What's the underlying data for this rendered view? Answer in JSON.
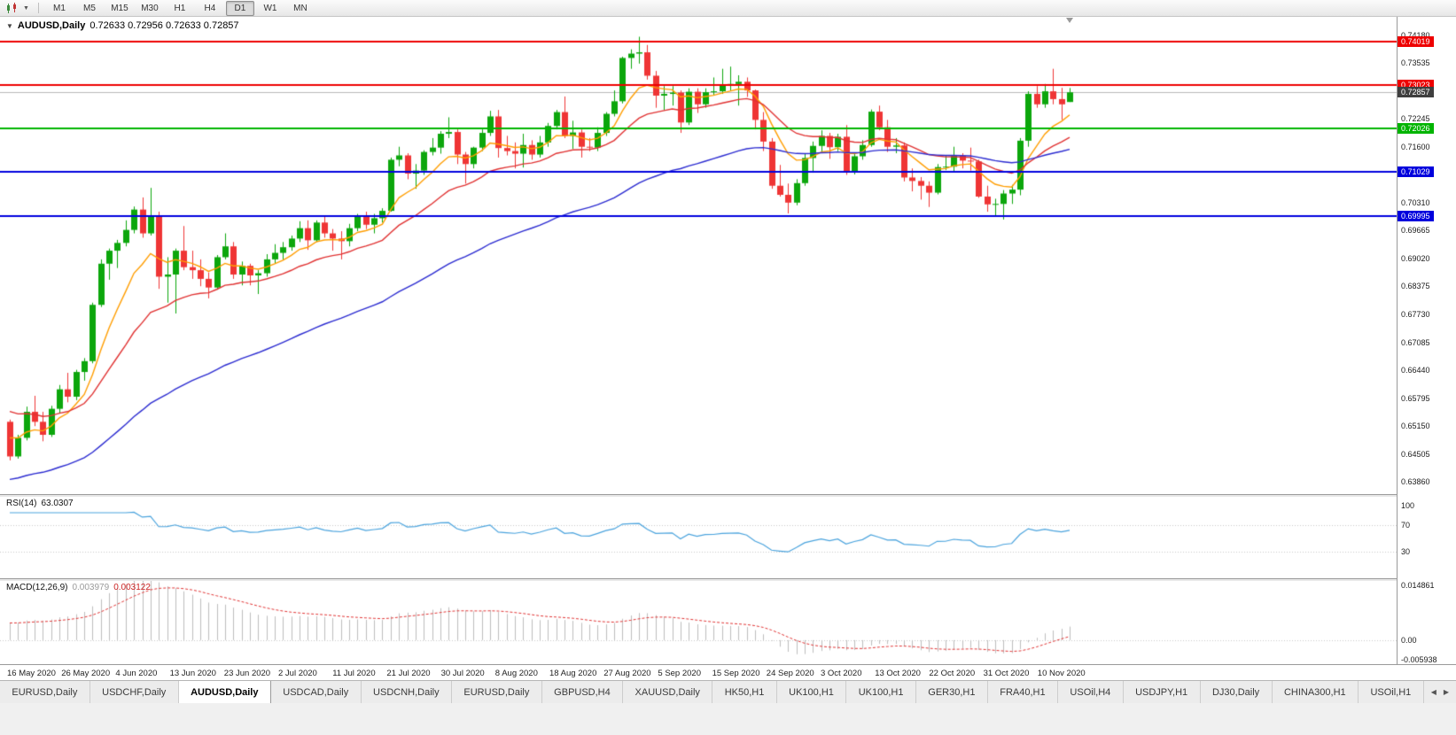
{
  "toolbar": {
    "timeframes": [
      "M1",
      "M5",
      "M15",
      "M30",
      "H1",
      "H4",
      "D1",
      "W1",
      "MN"
    ],
    "active_timeframe": "D1"
  },
  "header": {
    "symbol_period": "AUDUSD,Daily",
    "ohlc": "0.72633 0.72956 0.72633 0.72857"
  },
  "chart_data": {
    "type": "candlestick",
    "symbol": "AUDUSD",
    "period": "Daily",
    "bull_color": "#0ca60c",
    "bear_color": "#ef3535",
    "price_axis": {
      "view_max": 0.7462,
      "view_min": 0.6358,
      "ticks": [
        "0.74180",
        "0.73535",
        "0.72890",
        "0.72245",
        "0.71600",
        "0.70955",
        "0.70310",
        "0.69665",
        "0.69020",
        "0.68375",
        "0.67730",
        "0.67085",
        "0.66440",
        "0.65795",
        "0.65150",
        "0.64505",
        "0.63860"
      ]
    },
    "time_axis": [
      "16 May 2020",
      "26 May 2020",
      "4 Jun 2020",
      "13 Jun 2020",
      "23 Jun 2020",
      "2 Jul 2020",
      "11 Jul 2020",
      "21 Jul 2020",
      "30 Jul 2020",
      "8 Aug 2020",
      "18 Aug 2020",
      "27 Aug 2020",
      "5 Sep 2020",
      "15 Sep 2020",
      "24 Sep 2020",
      "3 Oct 2020",
      "13 Oct 2020",
      "22 Oct 2020",
      "31 Oct 2020",
      "10 Nov 2020"
    ],
    "candles": [
      [
        0.6525,
        0.653,
        0.6436,
        0.6445
      ],
      [
        0.6445,
        0.6495,
        0.644,
        0.6488
      ],
      [
        0.6488,
        0.656,
        0.6482,
        0.6548
      ],
      [
        0.6548,
        0.6585,
        0.6515,
        0.6525
      ],
      [
        0.6525,
        0.6548,
        0.648,
        0.6495
      ],
      [
        0.6495,
        0.6562,
        0.649,
        0.6555
      ],
      [
        0.6555,
        0.661,
        0.6545,
        0.66
      ],
      [
        0.66,
        0.6638,
        0.657,
        0.6583
      ],
      [
        0.6583,
        0.6645,
        0.6575,
        0.664
      ],
      [
        0.664,
        0.6672,
        0.662,
        0.6665
      ],
      [
        0.6665,
        0.68,
        0.666,
        0.6795
      ],
      [
        0.6795,
        0.69,
        0.679,
        0.689
      ],
      [
        0.689,
        0.6925,
        0.6853,
        0.692
      ],
      [
        0.692,
        0.6945,
        0.688,
        0.6938
      ],
      [
        0.6938,
        0.699,
        0.693,
        0.6968
      ],
      [
        0.6968,
        0.7022,
        0.696,
        0.7015
      ],
      [
        0.7015,
        0.7043,
        0.695,
        0.696
      ],
      [
        0.696,
        0.7065,
        0.6955,
        0.7
      ],
      [
        0.7,
        0.701,
        0.6832,
        0.686
      ],
      [
        0.686,
        0.6905,
        0.68,
        0.6865
      ],
      [
        0.6865,
        0.6925,
        0.6775,
        0.692
      ],
      [
        0.692,
        0.6977,
        0.6875,
        0.6882
      ],
      [
        0.6882,
        0.692,
        0.6855,
        0.6875
      ],
      [
        0.6875,
        0.69,
        0.6838,
        0.6855
      ],
      [
        0.6855,
        0.687,
        0.681,
        0.6835
      ],
      [
        0.6835,
        0.691,
        0.683,
        0.6905
      ],
      [
        0.6905,
        0.696,
        0.69,
        0.693
      ],
      [
        0.693,
        0.694,
        0.6855,
        0.6865
      ],
      [
        0.6865,
        0.6895,
        0.684,
        0.6885
      ],
      [
        0.6885,
        0.689,
        0.684,
        0.6863
      ],
      [
        0.6863,
        0.6875,
        0.682,
        0.6868
      ],
      [
        0.6868,
        0.6912,
        0.686,
        0.69
      ],
      [
        0.69,
        0.6935,
        0.689,
        0.6915
      ],
      [
        0.6915,
        0.694,
        0.69,
        0.6928
      ],
      [
        0.6928,
        0.6955,
        0.692,
        0.6948
      ],
      [
        0.6948,
        0.6988,
        0.694,
        0.6972
      ],
      [
        0.6972,
        0.699,
        0.6922,
        0.6944
      ],
      [
        0.6944,
        0.699,
        0.694,
        0.6985
      ],
      [
        0.6985,
        0.7,
        0.695,
        0.696
      ],
      [
        0.696,
        0.697,
        0.692,
        0.6948
      ],
      [
        0.6948,
        0.6965,
        0.69,
        0.6942
      ],
      [
        0.6942,
        0.6982,
        0.693,
        0.6972
      ],
      [
        0.6972,
        0.7005,
        0.6965,
        0.7002
      ],
      [
        0.7002,
        0.701,
        0.697,
        0.698
      ],
      [
        0.698,
        0.7005,
        0.696,
        0.6995
      ],
      [
        0.6995,
        0.7018,
        0.6985,
        0.7012
      ],
      [
        0.7012,
        0.7135,
        0.701,
        0.713
      ],
      [
        0.713,
        0.716,
        0.7115,
        0.714
      ],
      [
        0.714,
        0.7145,
        0.7085,
        0.7098
      ],
      [
        0.7098,
        0.712,
        0.7063,
        0.7105
      ],
      [
        0.7105,
        0.7152,
        0.7095,
        0.7148
      ],
      [
        0.7148,
        0.718,
        0.714,
        0.7158
      ],
      [
        0.7158,
        0.7196,
        0.7144,
        0.719
      ],
      [
        0.719,
        0.7228,
        0.718,
        0.7194
      ],
      [
        0.7194,
        0.72,
        0.712,
        0.7142
      ],
      [
        0.7142,
        0.7148,
        0.7075,
        0.712
      ],
      [
        0.712,
        0.716,
        0.711,
        0.7158
      ],
      [
        0.7158,
        0.72,
        0.715,
        0.7192
      ],
      [
        0.7192,
        0.7243,
        0.7185,
        0.723
      ],
      [
        0.723,
        0.7245,
        0.7135,
        0.7157
      ],
      [
        0.7157,
        0.7185,
        0.714,
        0.715
      ],
      [
        0.715,
        0.717,
        0.711,
        0.7144
      ],
      [
        0.7144,
        0.719,
        0.7112,
        0.7164
      ],
      [
        0.7164,
        0.7175,
        0.713,
        0.7142
      ],
      [
        0.7142,
        0.7185,
        0.7135,
        0.717
      ],
      [
        0.717,
        0.7215,
        0.716,
        0.7208
      ],
      [
        0.7208,
        0.7245,
        0.72,
        0.724
      ],
      [
        0.724,
        0.7276,
        0.718,
        0.7185
      ],
      [
        0.7185,
        0.722,
        0.7155,
        0.7193
      ],
      [
        0.7193,
        0.72,
        0.7135,
        0.716
      ],
      [
        0.716,
        0.718,
        0.715,
        0.7158
      ],
      [
        0.7158,
        0.7205,
        0.715,
        0.7192
      ],
      [
        0.7192,
        0.724,
        0.7185,
        0.7236
      ],
      [
        0.7236,
        0.729,
        0.723,
        0.7265
      ],
      [
        0.7265,
        0.7368,
        0.726,
        0.7365
      ],
      [
        0.7365,
        0.7385,
        0.734,
        0.7375
      ],
      [
        0.7375,
        0.7414,
        0.7352,
        0.7378
      ],
      [
        0.7378,
        0.7395,
        0.7315,
        0.7324
      ],
      [
        0.7324,
        0.7335,
        0.725,
        0.7278
      ],
      [
        0.7278,
        0.73,
        0.7245,
        0.7282
      ],
      [
        0.7282,
        0.73,
        0.7255,
        0.7285
      ],
      [
        0.7285,
        0.729,
        0.7192,
        0.7216
      ],
      [
        0.7216,
        0.7295,
        0.721,
        0.7287
      ],
      [
        0.7287,
        0.7295,
        0.7238,
        0.7258
      ],
      [
        0.7258,
        0.7295,
        0.725,
        0.7286
      ],
      [
        0.7286,
        0.732,
        0.728,
        0.7288
      ],
      [
        0.7288,
        0.734,
        0.7282,
        0.7302
      ],
      [
        0.7302,
        0.7345,
        0.729,
        0.7305
      ],
      [
        0.7305,
        0.7325,
        0.7255,
        0.731
      ],
      [
        0.731,
        0.732,
        0.7275,
        0.729
      ],
      [
        0.729,
        0.7292,
        0.72,
        0.7222
      ],
      [
        0.7222,
        0.724,
        0.715,
        0.7172
      ],
      [
        0.7172,
        0.718,
        0.7063,
        0.707
      ],
      [
        0.707,
        0.7118,
        0.7045,
        0.7049
      ],
      [
        0.7049,
        0.7075,
        0.7006,
        0.7031
      ],
      [
        0.7031,
        0.7085,
        0.7025,
        0.7076
      ],
      [
        0.7076,
        0.7145,
        0.707,
        0.7134
      ],
      [
        0.7134,
        0.7172,
        0.71,
        0.7162
      ],
      [
        0.7162,
        0.7198,
        0.7145,
        0.7185
      ],
      [
        0.7185,
        0.7192,
        0.7132,
        0.7159
      ],
      [
        0.7159,
        0.719,
        0.715,
        0.7183
      ],
      [
        0.7183,
        0.721,
        0.7095,
        0.7104
      ],
      [
        0.7104,
        0.7145,
        0.7096,
        0.7138
      ],
      [
        0.7138,
        0.7175,
        0.713,
        0.7164
      ],
      [
        0.7164,
        0.7246,
        0.716,
        0.7241
      ],
      [
        0.7241,
        0.7255,
        0.7198,
        0.7205
      ],
      [
        0.7205,
        0.7222,
        0.7148,
        0.716
      ],
      [
        0.716,
        0.718,
        0.7145,
        0.7163
      ],
      [
        0.7163,
        0.717,
        0.708,
        0.7089
      ],
      [
        0.7089,
        0.711,
        0.7057,
        0.7081
      ],
      [
        0.7081,
        0.709,
        0.7038,
        0.707
      ],
      [
        0.707,
        0.708,
        0.7021,
        0.7054
      ],
      [
        0.7054,
        0.712,
        0.705,
        0.7113
      ],
      [
        0.7113,
        0.714,
        0.7106,
        0.7114
      ],
      [
        0.7114,
        0.716,
        0.7103,
        0.7139
      ],
      [
        0.7139,
        0.7145,
        0.711,
        0.7128
      ],
      [
        0.7128,
        0.7158,
        0.7105,
        0.7126
      ],
      [
        0.7126,
        0.713,
        0.7042,
        0.7045
      ],
      [
        0.7045,
        0.707,
        0.701,
        0.7027
      ],
      [
        0.7027,
        0.704,
        0.6998,
        0.7028
      ],
      [
        0.7028,
        0.706,
        0.6992,
        0.7052
      ],
      [
        0.7052,
        0.7072,
        0.7028,
        0.7061
      ],
      [
        0.7061,
        0.718,
        0.7048,
        0.7174
      ],
      [
        0.7174,
        0.7288,
        0.716,
        0.7282
      ],
      [
        0.7282,
        0.73,
        0.725,
        0.7258
      ],
      [
        0.7258,
        0.7305,
        0.725,
        0.7288
      ],
      [
        0.7288,
        0.734,
        0.7258,
        0.727
      ],
      [
        0.727,
        0.7296,
        0.7222,
        0.7258
      ],
      [
        0.72633,
        0.72956,
        0.72633,
        0.72857
      ]
    ],
    "moving_averages": [
      {
        "name": "ma-fast",
        "period": 8,
        "color": "#ff9d00",
        "seed": 0.65
      },
      {
        "name": "ma-mid",
        "period": 20,
        "color": "#e03232",
        "seed": 0.656
      },
      {
        "name": "ma-slow",
        "period": 55,
        "color": "#2b2bd0",
        "seed": 0.639
      }
    ],
    "hlines": [
      {
        "label": "0.74019",
        "color": "#ee0000"
      },
      {
        "label": "0.73023",
        "color": "#ee0000"
      },
      {
        "label": "0.72026",
        "color": "#00b400"
      },
      {
        "label": "0.71029",
        "color": "#0000dd"
      },
      {
        "label": "0.69995",
        "color": "#0000dd"
      }
    ],
    "bid": {
      "label": "0.72857",
      "badge_color": "#3f3f3f",
      "line_color": "#b8b8b8"
    },
    "rsi": {
      "name": "RSI(14)",
      "value": "63.0307",
      "period": 14,
      "line_color": "#4aa3dd",
      "view_max": 115,
      "view_min": -10,
      "scale_labels": [
        "100",
        "70",
        "30"
      ],
      "level_lines": [
        70,
        30
      ]
    },
    "macd": {
      "name": "MACD(12,26,9)",
      "main_value": "0.003979",
      "signal_value": "0.003122",
      "fast": 12,
      "slow": 26,
      "signal": 9,
      "fast_seed": 0.6435,
      "slow_seed": 0.639,
      "histogram_color": "#bdbdbd",
      "signal_color": "#e03232",
      "view_max": 0.014861,
      "view_min": -0.005938,
      "scale": [
        {
          "v": 0.014861,
          "label": "0.014861"
        },
        {
          "v": 0,
          "label": "0.00"
        },
        {
          "v": -0.005938,
          "label": "-0.005938"
        }
      ]
    }
  },
  "tabs": {
    "items": [
      "EURUSD,Daily",
      "USDCHF,Daily",
      "AUDUSD,Daily",
      "USDCAD,Daily",
      "USDCNH,Daily",
      "EURUSD,Daily",
      "GBPUSD,H4",
      "XAUUSD,Daily",
      "HK50,H1",
      "UK100,H1",
      "UK100,H1",
      "GER30,H1",
      "FRA40,H1",
      "USOil,H4",
      "USDJPY,H1",
      "DJ30,Daily",
      "CHINA300,H1",
      "USOil,H1"
    ],
    "active_index": 2,
    "nav_left": "◀",
    "nav_right": "▶"
  }
}
